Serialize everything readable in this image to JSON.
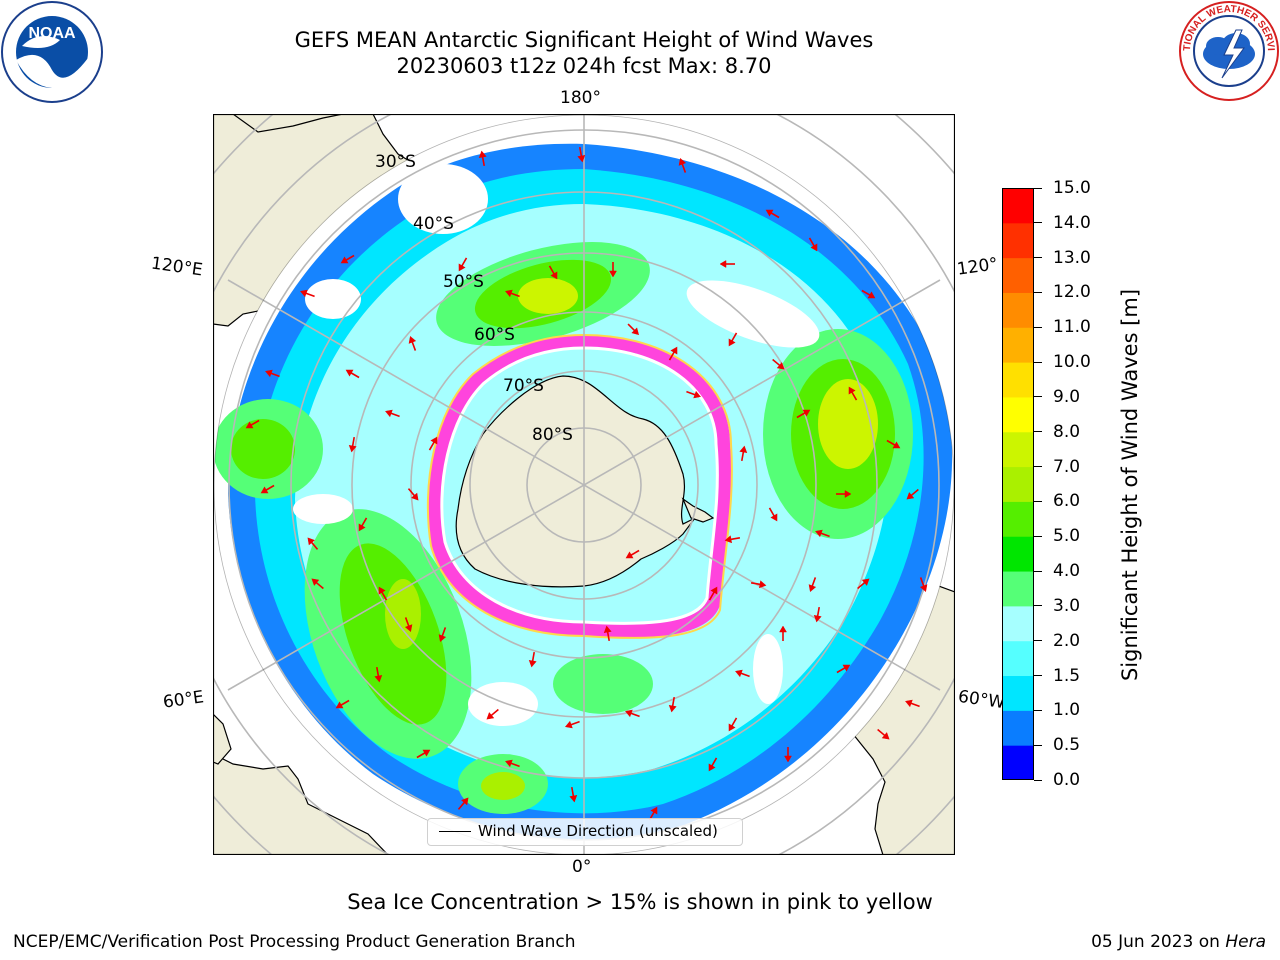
{
  "title": {
    "line1": "GEFS MEAN Antarctic Significant Height of Wind Waves",
    "line2": "20230603 t12z 024h fcst   Max: 8.70"
  },
  "map": {
    "projection": "south-polar-stereographic",
    "longitude_labels": {
      "top": "180°",
      "bottom": "0°",
      "upper_left": "120°E",
      "lower_left": "60°E",
      "upper_right": "120°",
      "lower_right": "60°W"
    },
    "latitude_labels": [
      "30°S",
      "40°S",
      "50°S",
      "60°S",
      "70°S",
      "80°S"
    ],
    "legend": {
      "label": "Wind Wave Direction (unscaled)"
    },
    "colors": {
      "land": "#efedd9",
      "sea_ice": "#ff44dd",
      "arrows": "#ee0000",
      "grid": "#b8b8b8"
    }
  },
  "colorbar": {
    "label": "Significant Height of Wind Waves [m]",
    "tick_labels": [
      "15.0",
      "14.0",
      "13.0",
      "12.0",
      "11.0",
      "10.0",
      "9.0",
      "8.0",
      "7.0",
      "6.0",
      "5.0",
      "4.0",
      "3.0",
      "2.0",
      "1.5",
      "1.0",
      "0.5",
      "0.0"
    ],
    "levels": [
      0,
      0.5,
      1,
      1.5,
      2,
      3,
      4,
      5,
      6,
      7,
      8,
      9,
      10,
      11,
      12,
      13,
      14,
      15
    ],
    "colors": [
      "#0000ff",
      "#0a7dff",
      "#00e6ff",
      "#55ffff",
      "#a6ffff",
      "#55ff77",
      "#00e600",
      "#55ee00",
      "#aaf000",
      "#ccf500",
      "#ffff00",
      "#ffe000",
      "#ffb000",
      "#ff8c00",
      "#ff6000",
      "#ff3000",
      "#ff0000"
    ]
  },
  "annotations": {
    "sea_ice_note": "Sea Ice Concentration > 15% is shown in pink to yellow",
    "footer_left": "NCEP/EMC/Verification Post Processing Product Generation Branch",
    "footer_right_date": "05 Jun 2023 on ",
    "footer_right_host": "Hera"
  },
  "logos": {
    "left": "NOAA",
    "right": "NATIONAL WEATHER SERVICE"
  }
}
